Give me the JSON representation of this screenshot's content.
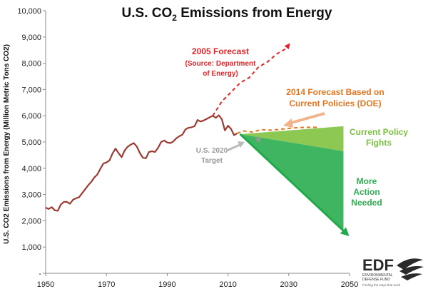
{
  "chart_data": {
    "type": "line",
    "title_main": "U.S. CO",
    "title_sub": "2",
    "title_end": " Emissions from Energy",
    "ylabel": "U.S. CO2 Emissions from Energy (Million Metric Tons CO2)",
    "xlim": [
      1950,
      2050
    ],
    "ylim": [
      0,
      10000
    ],
    "x_ticks": [
      1950,
      1970,
      1990,
      2010,
      2030,
      2050
    ],
    "y_ticks": [
      0,
      1000,
      2000,
      3000,
      4000,
      5000,
      6000,
      7000,
      8000,
      9000,
      10000
    ],
    "y_tick_labels": [
      "-",
      "1,000",
      "2,000",
      "3,000",
      "4,000",
      "5,000",
      "6,000",
      "7,000",
      "8,000",
      "9,000",
      "10,000"
    ],
    "grid": false,
    "series": [
      {
        "key": "historical",
        "color": "#9c3b32",
        "x": [
          1950,
          1951,
          1952,
          1953,
          1954,
          1955,
          1956,
          1957,
          1958,
          1959,
          1960,
          1961,
          1962,
          1963,
          1964,
          1965,
          1966,
          1967,
          1968,
          1969,
          1970,
          1971,
          1972,
          1973,
          1974,
          1975,
          1976,
          1977,
          1978,
          1979,
          1980,
          1981,
          1982,
          1983,
          1984,
          1985,
          1986,
          1987,
          1988,
          1989,
          1990,
          1991,
          1992,
          1993,
          1994,
          1995,
          1996,
          1997,
          1998,
          1999,
          2000,
          2001,
          2002,
          2003,
          2004,
          2005,
          2006,
          2007,
          2008,
          2009,
          2010,
          2011,
          2012,
          2013
        ],
        "values": [
          2500,
          2450,
          2520,
          2400,
          2380,
          2620,
          2720,
          2720,
          2650,
          2800,
          2860,
          2900,
          3050,
          3200,
          3350,
          3480,
          3650,
          3760,
          3980,
          4180,
          4220,
          4300,
          4560,
          4750,
          4580,
          4420,
          4680,
          4820,
          4900,
          4960,
          4830,
          4580,
          4400,
          4380,
          4620,
          4650,
          4620,
          4780,
          5000,
          5060,
          4980,
          4960,
          5020,
          5140,
          5220,
          5280,
          5480,
          5540,
          5560,
          5600,
          5840,
          5780,
          5820,
          5880,
          5940,
          6000,
          5920,
          6020,
          5860,
          5440,
          5620,
          5500,
          5260,
          5330
        ]
      },
      {
        "key": "forecast_2005",
        "label": "2005 Forecast",
        "label2": "(Source: Department",
        "label3": "of Energy)",
        "color": "#e0242a",
        "x": [
          2005,
          2008,
          2011,
          2014,
          2017,
          2020,
          2023,
          2026,
          2029,
          2030
        ],
        "values": [
          6000,
          6550,
          6900,
          7250,
          7450,
          7850,
          8050,
          8350,
          8550,
          8700
        ]
      },
      {
        "key": "forecast_2014",
        "label": "2014 Forecast Based on",
        "label2": "Current Policies (DOE)",
        "color": "#e4761f",
        "x": [
          2013,
          2015,
          2018,
          2021,
          2024,
          2027,
          2030,
          2033,
          2036,
          2040
        ],
        "values": [
          5330,
          5420,
          5380,
          5470,
          5450,
          5480,
          5520,
          5550,
          5560,
          5560
        ]
      }
    ],
    "regions": [
      {
        "key": "current_policy",
        "label": "Current Policy",
        "label2": "Fights",
        "color": "#8dc853",
        "x": [
          2014,
          2048,
          2048
        ],
        "values": [
          5300,
          5600,
          4650
        ]
      },
      {
        "key": "more_action",
        "label": "More",
        "label2": "Action",
        "label3": "Needed",
        "color": "#3fb562",
        "x": [
          2014,
          2048,
          2048
        ],
        "values": [
          5300,
          4650,
          1650
        ]
      }
    ],
    "arrow_down": {
      "color": "#20a94a",
      "x": [
        2014,
        2050
      ],
      "values": [
        5300,
        1370
      ]
    },
    "target": {
      "label": "U.S. 2020",
      "label2": "Target",
      "color": "#999999",
      "x": 2020,
      "value": 5100
    }
  },
  "logo": {
    "text": "EDF",
    "line1": "ENVIRONMENTAL",
    "line2": "DEFENSE FUND",
    "tagline": "Finding the ways that work"
  }
}
